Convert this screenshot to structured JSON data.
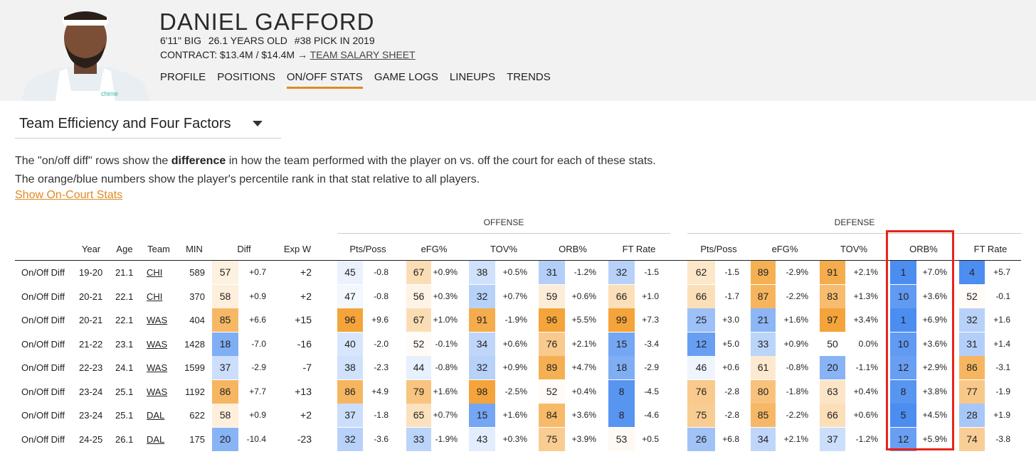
{
  "player": {
    "name": "DANIEL GAFFORD",
    "height_pos": "6'11\" BIG",
    "age": "26.1 YEARS OLD",
    "pick": "#38 PICK IN 2019",
    "contract_label": "CONTRACT:",
    "contract_value": "$13.4M / $14.4M",
    "arrow": "→",
    "salary_link": "TEAM SALARY SHEET"
  },
  "nav": {
    "tabs": [
      "PROFILE",
      "POSITIONS",
      "ON/OFF STATS",
      "GAME LOGS",
      "LINEUPS",
      "TRENDS"
    ],
    "active": "ON/OFF STATS"
  },
  "selector": {
    "value": "Team Efficiency and Four Factors"
  },
  "desc": {
    "line1_pre": "The \"on/off diff\" rows show the ",
    "line1_bold": "difference",
    "line1_post": " in how the team performed with the player on vs. off the court for each of these stats.",
    "line2": "The orange/blue numbers show the player's percentile rank in that stat relative to all players.",
    "link": "Show On-Court Stats"
  },
  "groups": {
    "offense": "OFFENSE",
    "defense": "DEFENSE"
  },
  "columns": [
    "Year",
    "Age",
    "Team",
    "MIN",
    "Diff",
    "Exp W",
    "Pts/Poss",
    "eFG%",
    "TOV%",
    "ORB%",
    "FT Rate",
    "Pts/Poss",
    "eFG%",
    "TOV%",
    "ORB%",
    "FT Rate"
  ],
  "colors": {
    "orange_dark": "#f4a43a",
    "blue_dark": "#4c8df0",
    "highlight_border": "#e8231a",
    "accent": "#e08a25"
  },
  "rows": [
    {
      "label": "On/Off Diff",
      "year": "19-20",
      "age": "21.1",
      "team": "CHI",
      "min": "589",
      "diff": [
        57,
        "+0.7"
      ],
      "expw": "+2",
      "stats": [
        [
          45,
          "-0.8"
        ],
        [
          67,
          "+0.9%"
        ],
        [
          38,
          "+0.5%"
        ],
        [
          31,
          "-1.2%"
        ],
        [
          32,
          "-1.5"
        ],
        [
          62,
          "-1.5"
        ],
        [
          89,
          "-2.9%"
        ],
        [
          91,
          "+2.1%"
        ],
        [
          1,
          "+7.0%"
        ],
        [
          4,
          "+5.7"
        ]
      ]
    },
    {
      "label": "On/Off Diff",
      "year": "20-21",
      "age": "22.1",
      "team": "CHI",
      "min": "370",
      "diff": [
        58,
        "+0.9"
      ],
      "expw": "+2",
      "stats": [
        [
          47,
          "-0.8"
        ],
        [
          56,
          "+0.3%"
        ],
        [
          32,
          "+0.7%"
        ],
        [
          59,
          "+0.6%"
        ],
        [
          66,
          "+1.0"
        ],
        [
          66,
          "-1.7"
        ],
        [
          87,
          "-2.2%"
        ],
        [
          83,
          "+1.3%"
        ],
        [
          10,
          "+3.6%"
        ],
        [
          52,
          "-0.1"
        ]
      ]
    },
    {
      "label": "On/Off Diff",
      "year": "20-21",
      "age": "22.1",
      "team": "WAS",
      "min": "404",
      "diff": [
        85,
        "+6.6"
      ],
      "expw": "+15",
      "stats": [
        [
          96,
          "+9.6"
        ],
        [
          67,
          "+1.0%"
        ],
        [
          91,
          "-1.9%"
        ],
        [
          96,
          "+5.5%"
        ],
        [
          99,
          "+7.3"
        ],
        [
          25,
          "+3.0"
        ],
        [
          21,
          "+1.6%"
        ],
        [
          97,
          "+3.4%"
        ],
        [
          1,
          "+6.9%"
        ],
        [
          32,
          "+1.6"
        ]
      ]
    },
    {
      "label": "On/Off Diff",
      "year": "21-22",
      "age": "23.1",
      "team": "WAS",
      "min": "1428",
      "diff": [
        18,
        "-7.0"
      ],
      "expw": "-16",
      "stats": [
        [
          40,
          "-2.0"
        ],
        [
          52,
          "-0.1%"
        ],
        [
          34,
          "+0.6%"
        ],
        [
          76,
          "+2.1%"
        ],
        [
          15,
          "-3.4"
        ],
        [
          12,
          "+5.0"
        ],
        [
          33,
          "+0.9%"
        ],
        [
          50,
          "0.0%"
        ],
        [
          10,
          "+3.6%"
        ],
        [
          31,
          "+1.4"
        ]
      ]
    },
    {
      "label": "On/Off Diff",
      "year": "22-23",
      "age": "24.1",
      "team": "WAS",
      "min": "1599",
      "diff": [
        37,
        "-2.9"
      ],
      "expw": "-7",
      "stats": [
        [
          38,
          "-2.3"
        ],
        [
          44,
          "-0.8%"
        ],
        [
          32,
          "+0.9%"
        ],
        [
          89,
          "+4.7%"
        ],
        [
          18,
          "-2.9"
        ],
        [
          46,
          "+0.6"
        ],
        [
          61,
          "-0.8%"
        ],
        [
          20,
          "-1.1%"
        ],
        [
          12,
          "+2.9%"
        ],
        [
          86,
          "-3.1"
        ]
      ]
    },
    {
      "label": "On/Off Diff",
      "year": "23-24",
      "age": "25.1",
      "team": "WAS",
      "min": "1192",
      "diff": [
        86,
        "+7.7"
      ],
      "expw": "+13",
      "stats": [
        [
          86,
          "+4.9"
        ],
        [
          79,
          "+1.6%"
        ],
        [
          98,
          "-2.5%"
        ],
        [
          52,
          "+0.4%"
        ],
        [
          8,
          "-4.5"
        ],
        [
          76,
          "-2.8"
        ],
        [
          80,
          "-1.8%"
        ],
        [
          63,
          "+0.4%"
        ],
        [
          8,
          "+3.8%"
        ],
        [
          77,
          "-1.9"
        ]
      ]
    },
    {
      "label": "On/Off Diff",
      "year": "23-24",
      "age": "25.1",
      "team": "DAL",
      "min": "622",
      "diff": [
        58,
        "+0.9"
      ],
      "expw": "+2",
      "stats": [
        [
          37,
          "-1.8"
        ],
        [
          65,
          "+0.7%"
        ],
        [
          15,
          "+1.6%"
        ],
        [
          84,
          "+3.6%"
        ],
        [
          8,
          "-4.6"
        ],
        [
          75,
          "-2.8"
        ],
        [
          85,
          "-2.2%"
        ],
        [
          66,
          "+0.6%"
        ],
        [
          5,
          "+4.5%"
        ],
        [
          28,
          "+1.9"
        ]
      ]
    },
    {
      "label": "On/Off Diff",
      "year": "24-25",
      "age": "26.1",
      "team": "DAL",
      "min": "175",
      "diff": [
        20,
        "-10.4"
      ],
      "expw": "-23",
      "stats": [
        [
          32,
          "-3.6"
        ],
        [
          33,
          "-1.9%"
        ],
        [
          43,
          "+0.3%"
        ],
        [
          75,
          "+3.9%"
        ],
        [
          53,
          "+0.5"
        ],
        [
          26,
          "+6.8"
        ],
        [
          34,
          "+2.1%"
        ],
        [
          37,
          "-1.2%"
        ],
        [
          12,
          "+5.9%"
        ],
        [
          74,
          "-3.8"
        ]
      ]
    }
  ]
}
